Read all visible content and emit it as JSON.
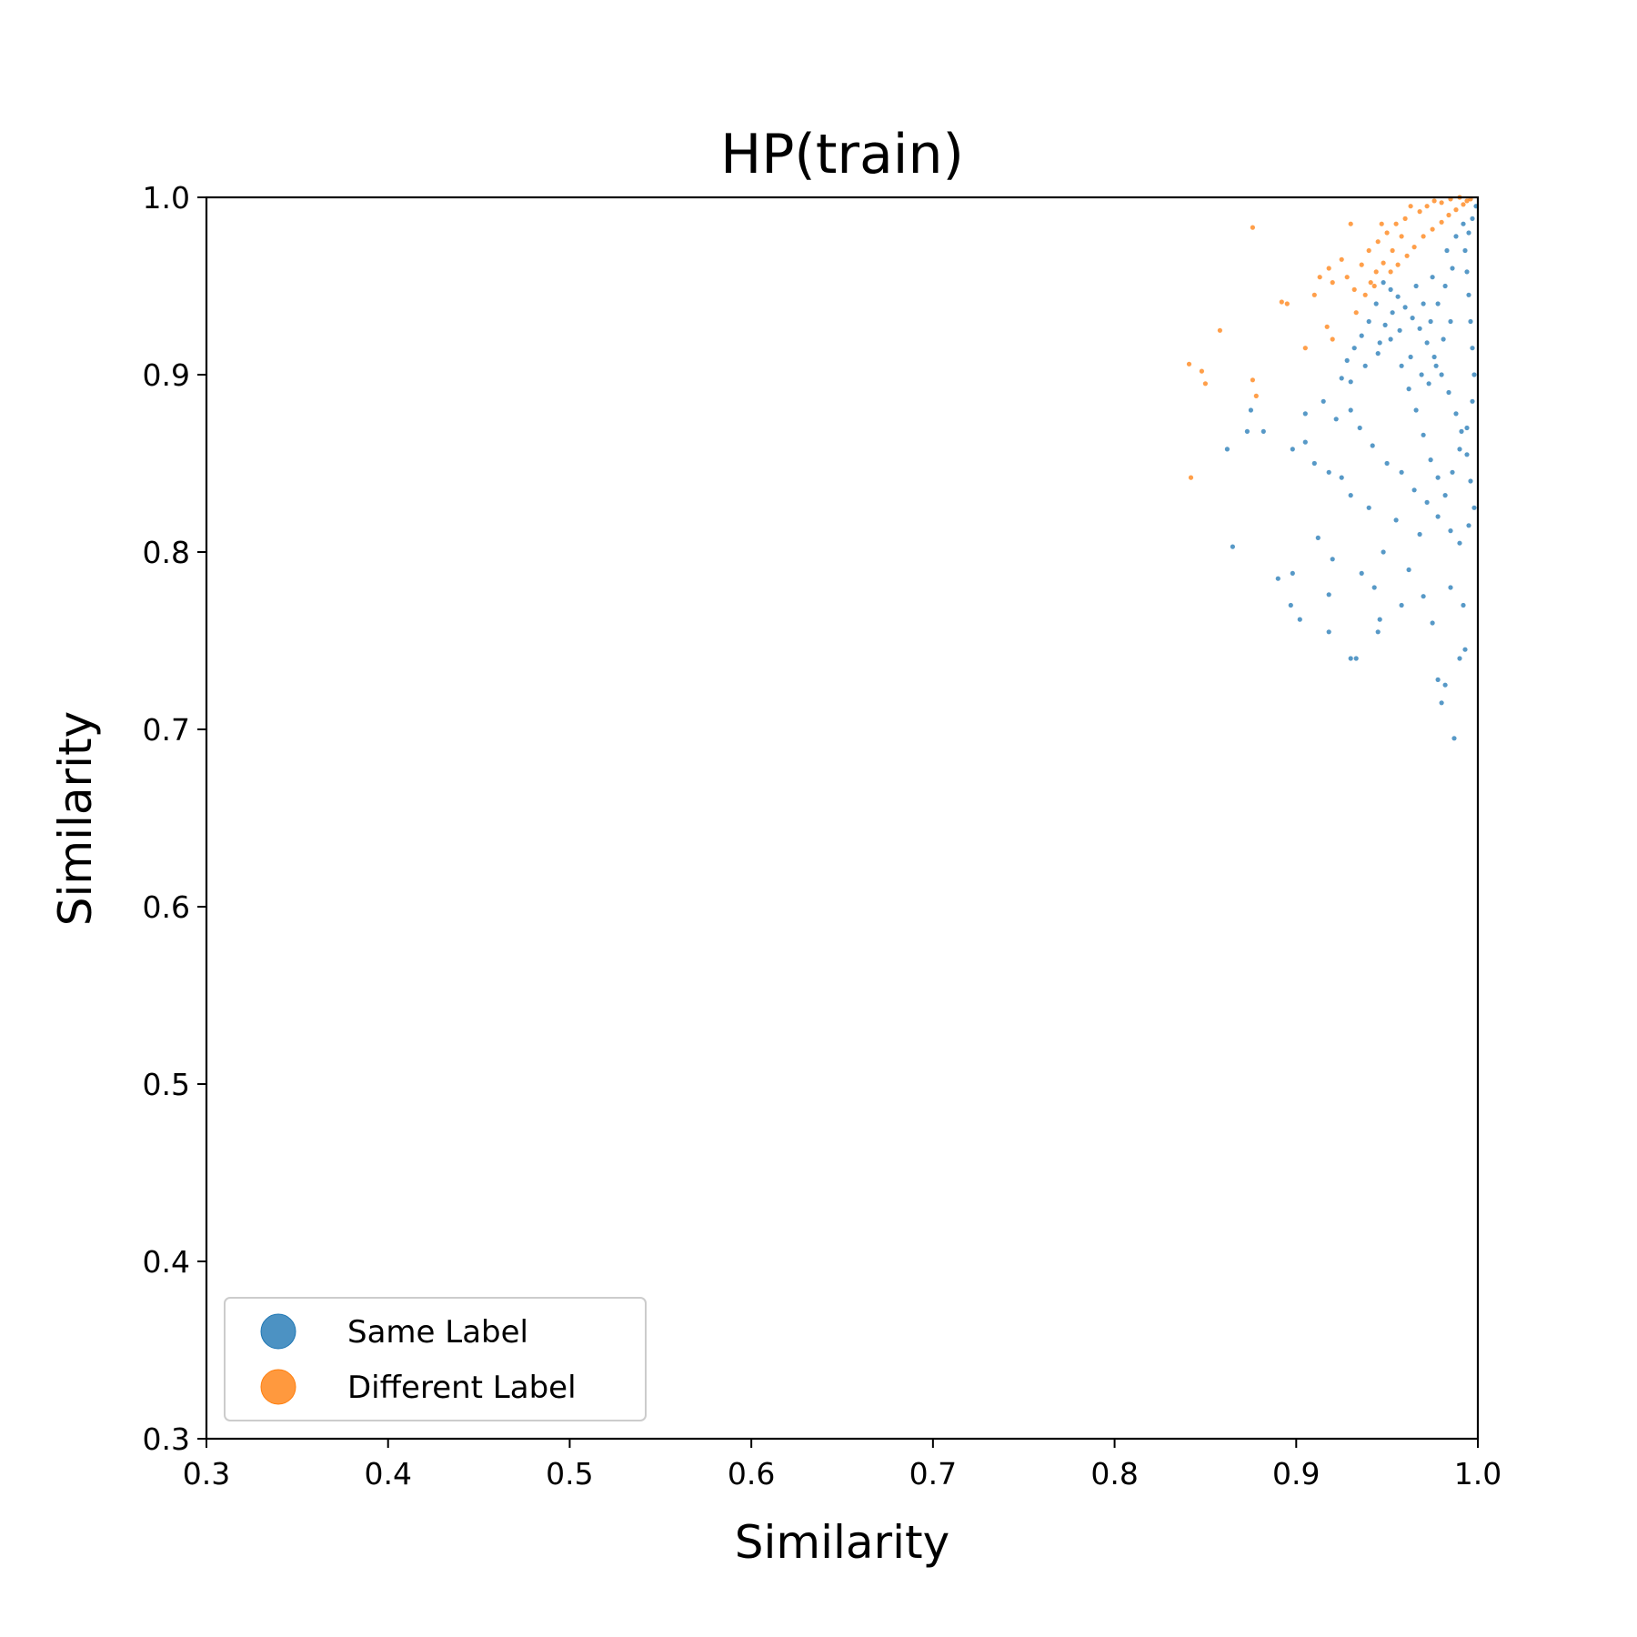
{
  "chart_data": {
    "type": "scatter",
    "title": "HP(train)",
    "xlabel": "Similarity",
    "ylabel": "Similarity",
    "xlim": [
      0.3,
      1.0
    ],
    "ylim": [
      0.3,
      1.0
    ],
    "xticks": [
      "0.3",
      "0.4",
      "0.5",
      "0.6",
      "0.7",
      "0.8",
      "0.9",
      "1.0"
    ],
    "yticks": [
      "0.3",
      "0.4",
      "0.5",
      "0.6",
      "0.7",
      "0.8",
      "0.9",
      "1.0"
    ],
    "grid": false,
    "legend_position": "lower-left",
    "series": [
      {
        "name": "Same Label",
        "color": "#1f77b4",
        "points": [
          [
            0.987,
            0.695
          ],
          [
            0.98,
            0.715
          ],
          [
            0.982,
            0.725
          ],
          [
            0.978,
            0.728
          ],
          [
            0.99,
            0.74
          ],
          [
            0.993,
            0.745
          ],
          [
            0.933,
            0.74
          ],
          [
            0.93,
            0.74
          ],
          [
            0.945,
            0.755
          ],
          [
            0.946,
            0.762
          ],
          [
            0.918,
            0.755
          ],
          [
            0.902,
            0.762
          ],
          [
            0.897,
            0.77
          ],
          [
            0.89,
            0.785
          ],
          [
            0.898,
            0.788
          ],
          [
            0.865,
            0.803
          ],
          [
            0.912,
            0.808
          ],
          [
            0.92,
            0.796
          ],
          [
            0.918,
            0.776
          ],
          [
            0.936,
            0.788
          ],
          [
            0.943,
            0.78
          ],
          [
            0.948,
            0.8
          ],
          [
            0.958,
            0.77
          ],
          [
            0.962,
            0.79
          ],
          [
            0.97,
            0.775
          ],
          [
            0.975,
            0.76
          ],
          [
            0.985,
            0.78
          ],
          [
            0.992,
            0.77
          ],
          [
            0.968,
            0.81
          ],
          [
            0.955,
            0.818
          ],
          [
            0.94,
            0.825
          ],
          [
            0.93,
            0.832
          ],
          [
            0.925,
            0.842
          ],
          [
            0.918,
            0.845
          ],
          [
            0.91,
            0.85
          ],
          [
            0.905,
            0.862
          ],
          [
            0.898,
            0.858
          ],
          [
            0.882,
            0.868
          ],
          [
            0.873,
            0.868
          ],
          [
            0.862,
            0.858
          ],
          [
            0.875,
            0.88
          ],
          [
            0.905,
            0.878
          ],
          [
            0.915,
            0.885
          ],
          [
            0.922,
            0.875
          ],
          [
            0.93,
            0.88
          ],
          [
            0.935,
            0.87
          ],
          [
            0.942,
            0.86
          ],
          [
            0.95,
            0.85
          ],
          [
            0.958,
            0.845
          ],
          [
            0.965,
            0.835
          ],
          [
            0.972,
            0.828
          ],
          [
            0.978,
            0.82
          ],
          [
            0.985,
            0.812
          ],
          [
            0.99,
            0.805
          ],
          [
            0.995,
            0.815
          ],
          [
            0.998,
            0.825
          ],
          [
            0.996,
            0.84
          ],
          [
            0.994,
            0.855
          ],
          [
            0.991,
            0.868
          ],
          [
            0.988,
            0.878
          ],
          [
            0.984,
            0.89
          ],
          [
            0.98,
            0.9
          ],
          [
            0.976,
            0.91
          ],
          [
            0.972,
            0.918
          ],
          [
            0.968,
            0.926
          ],
          [
            0.964,
            0.932
          ],
          [
            0.96,
            0.938
          ],
          [
            0.956,
            0.944
          ],
          [
            0.952,
            0.948
          ],
          [
            0.948,
            0.952
          ],
          [
            0.944,
            0.94
          ],
          [
            0.94,
            0.93
          ],
          [
            0.936,
            0.922
          ],
          [
            0.932,
            0.915
          ],
          [
            0.928,
            0.908
          ],
          [
            0.925,
            0.898
          ],
          [
            0.93,
            0.896
          ],
          [
            0.938,
            0.905
          ],
          [
            0.945,
            0.912
          ],
          [
            0.952,
            0.92
          ],
          [
            0.958,
            0.905
          ],
          [
            0.962,
            0.892
          ],
          [
            0.966,
            0.88
          ],
          [
            0.97,
            0.866
          ],
          [
            0.974,
            0.852
          ],
          [
            0.978,
            0.842
          ],
          [
            0.982,
            0.832
          ],
          [
            0.986,
            0.845
          ],
          [
            0.99,
            0.858
          ],
          [
            0.994,
            0.87
          ],
          [
            0.997,
            0.885
          ],
          [
            0.998,
            0.9
          ],
          [
            0.997,
            0.915
          ],
          [
            0.996,
            0.93
          ],
          [
            0.995,
            0.945
          ],
          [
            0.994,
            0.958
          ],
          [
            0.993,
            0.97
          ],
          [
            0.995,
            0.98
          ],
          [
            0.997,
            0.988
          ],
          [
            0.999,
            0.995
          ],
          [
            0.986,
            0.96
          ],
          [
            0.982,
            0.95
          ],
          [
            0.978,
            0.94
          ],
          [
            0.974,
            0.93
          ],
          [
            0.97,
            0.94
          ],
          [
            0.966,
            0.95
          ],
          [
            0.975,
            0.955
          ],
          [
            0.983,
            0.97
          ],
          [
            0.988,
            0.978
          ],
          [
            0.992,
            0.985
          ],
          [
            0.985,
            0.93
          ],
          [
            0.981,
            0.92
          ],
          [
            0.977,
            0.905
          ],
          [
            0.973,
            0.895
          ],
          [
            0.969,
            0.9
          ],
          [
            0.963,
            0.91
          ],
          [
            0.957,
            0.925
          ],
          [
            0.953,
            0.935
          ],
          [
            0.949,
            0.928
          ],
          [
            0.946,
            0.918
          ]
        ]
      },
      {
        "name": "Different Label",
        "color": "#ff7f0e",
        "points": [
          [
            0.842,
            0.842
          ],
          [
            0.841,
            0.906
          ],
          [
            0.848,
            0.902
          ],
          [
            0.85,
            0.895
          ],
          [
            0.858,
            0.925
          ],
          [
            0.876,
            0.983
          ],
          [
            0.876,
            0.897
          ],
          [
            0.878,
            0.888
          ],
          [
            0.892,
            0.941
          ],
          [
            0.895,
            0.94
          ],
          [
            0.91,
            0.945
          ],
          [
            0.913,
            0.955
          ],
          [
            0.918,
            0.96
          ],
          [
            0.92,
            0.952
          ],
          [
            0.925,
            0.965
          ],
          [
            0.928,
            0.955
          ],
          [
            0.932,
            0.948
          ],
          [
            0.936,
            0.962
          ],
          [
            0.94,
            0.97
          ],
          [
            0.945,
            0.975
          ],
          [
            0.95,
            0.98
          ],
          [
            0.955,
            0.985
          ],
          [
            0.96,
            0.988
          ],
          [
            0.958,
            0.978
          ],
          [
            0.953,
            0.97
          ],
          [
            0.948,
            0.963
          ],
          [
            0.944,
            0.958
          ],
          [
            0.941,
            0.952
          ],
          [
            0.947,
            0.985
          ],
          [
            0.93,
            0.985
          ],
          [
            0.933,
            0.935
          ],
          [
            0.92,
            0.92
          ],
          [
            0.905,
            0.915
          ],
          [
            0.917,
            0.927
          ],
          [
            0.963,
            0.995
          ],
          [
            0.968,
            0.992
          ],
          [
            0.972,
            0.995
          ],
          [
            0.976,
            0.998
          ],
          [
            0.98,
            0.997
          ],
          [
            0.985,
            0.999
          ],
          [
            0.99,
            1.0
          ],
          [
            0.994,
            0.998
          ],
          [
            0.965,
            0.972
          ],
          [
            0.97,
            0.978
          ],
          [
            0.975,
            0.982
          ],
          [
            0.98,
            0.986
          ],
          [
            0.984,
            0.99
          ],
          [
            0.988,
            0.993
          ],
          [
            0.992,
            0.996
          ],
          [
            0.996,
            0.999
          ],
          [
            0.938,
            0.945
          ],
          [
            0.943,
            0.95
          ],
          [
            0.956,
            0.962
          ],
          [
            0.961,
            0.967
          ],
          [
            0.952,
            0.958
          ]
        ]
      }
    ]
  }
}
